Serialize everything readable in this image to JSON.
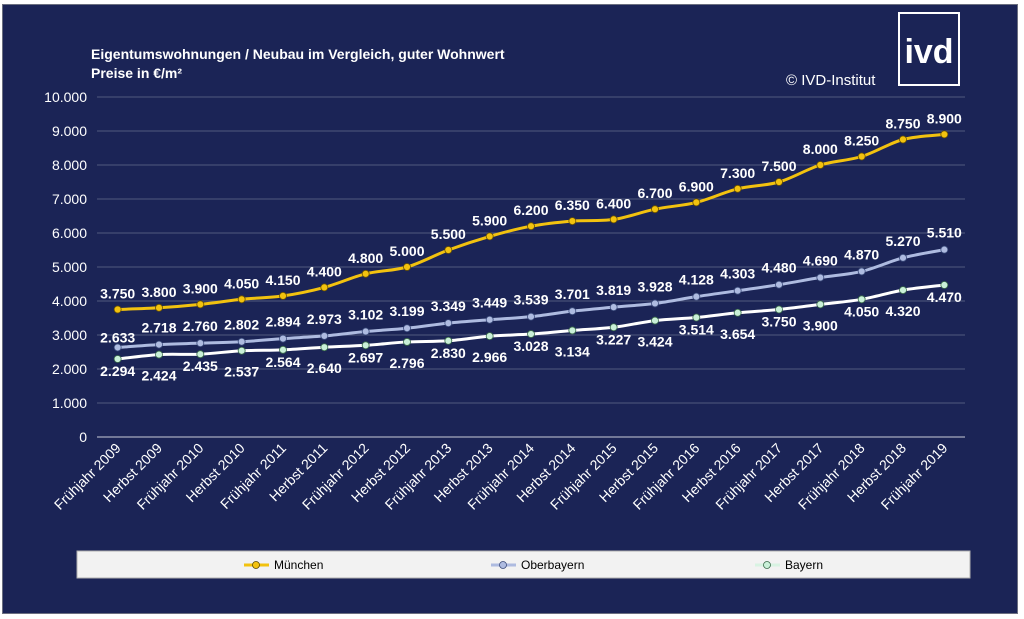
{
  "header": {
    "logo_text": "ivd",
    "copyright": "© IVD-Institut"
  },
  "colors": {
    "background": "#1b2456",
    "muenchen": "#f2c20f",
    "oberbayern": "#aebbe0",
    "bayern": "#ffffff",
    "bayern_marker": "#c9f0d8"
  },
  "chart_data": {
    "type": "line",
    "title": "Eigentumswohnungen / Neubau im  Vergleich, guter Wohnwert",
    "subtitle": "Preise in €/m²",
    "xlabel": "",
    "ylabel": "",
    "ylim": [
      0,
      10000
    ],
    "yticks": [
      0,
      1000,
      2000,
      3000,
      4000,
      5000,
      6000,
      7000,
      8000,
      9000,
      10000
    ],
    "ytick_labels": [
      "0",
      "1.000",
      "2.000",
      "3.000",
      "4.000",
      "5.000",
      "6.000",
      "7.000",
      "8.000",
      "9.000",
      "10.000"
    ],
    "grid": true,
    "legend_position": "bottom",
    "categories": [
      "Frühjahr 2009",
      "Herbst 2009",
      "Frühjahr 2010",
      "Herbst 2010",
      "Frühjahr 2011",
      "Herbst 2011",
      "Frühjahr 2012",
      "Herbst 2012",
      "Frühjahr 2013",
      "Herbst 2013",
      "Frühjahr 2014",
      "Herbst 2014",
      "Frühjahr 2015",
      "Herbst 2015",
      "Frühjahr 2016",
      "Herbst 2016",
      "Frühjahr 2017",
      "Herbst 2017",
      "Frühjahr 2018",
      "Herbst 2018",
      "Frühjahr 2019"
    ],
    "series": [
      {
        "name": "München",
        "values": [
          3750,
          3800,
          3900,
          4050,
          4150,
          4400,
          4800,
          5000,
          5500,
          5900,
          6200,
          6350,
          6400,
          6700,
          6900,
          7300,
          7500,
          8000,
          8250,
          8750,
          8900
        ],
        "labels": [
          "3.750",
          "3.800",
          "3.900",
          "4.050",
          "4.150",
          "4.400",
          "4.800",
          "5.000",
          "5.500",
          "5.900",
          "6.200",
          "6.350",
          "6.400",
          "6.700",
          "6.900",
          "7.300",
          "7.500",
          "8.000",
          "8.250",
          "8.750",
          "8.900"
        ]
      },
      {
        "name": "Oberbayern",
        "values": [
          2633,
          2718,
          2760,
          2802,
          2894,
          2973,
          3102,
          3199,
          3349,
          3449,
          3539,
          3701,
          3819,
          3928,
          4128,
          4303,
          4480,
          4690,
          4870,
          5270,
          5510
        ],
        "labels": [
          "2.633",
          "2.718",
          "2.760",
          "2.802",
          "2.894",
          "2.973",
          "3.102",
          "3.199",
          "3.349",
          "3.449",
          "3.539",
          "3.701",
          "3.819",
          "3.928",
          "4.128",
          "4.303",
          "4.480",
          "4.690",
          "4.870",
          "5.270",
          "5.510"
        ]
      },
      {
        "name": "Bayern",
        "values": [
          2294,
          2424,
          2435,
          2537,
          2564,
          2640,
          2697,
          2796,
          2830,
          2966,
          3028,
          3134,
          3227,
          3424,
          3514,
          3654,
          3750,
          3900,
          4050,
          4320,
          4470
        ],
        "labels": [
          "2.294",
          "2.424",
          "2.435",
          "2.537",
          "2.564",
          "2.640",
          "2.697",
          "2.796",
          "2.830",
          "2.966",
          "3.028",
          "3.134",
          "3.227",
          "3.424",
          "3.514",
          "3.654",
          "3.750",
          "3.900",
          "4.050",
          "4.320",
          "4.470"
        ]
      }
    ]
  }
}
